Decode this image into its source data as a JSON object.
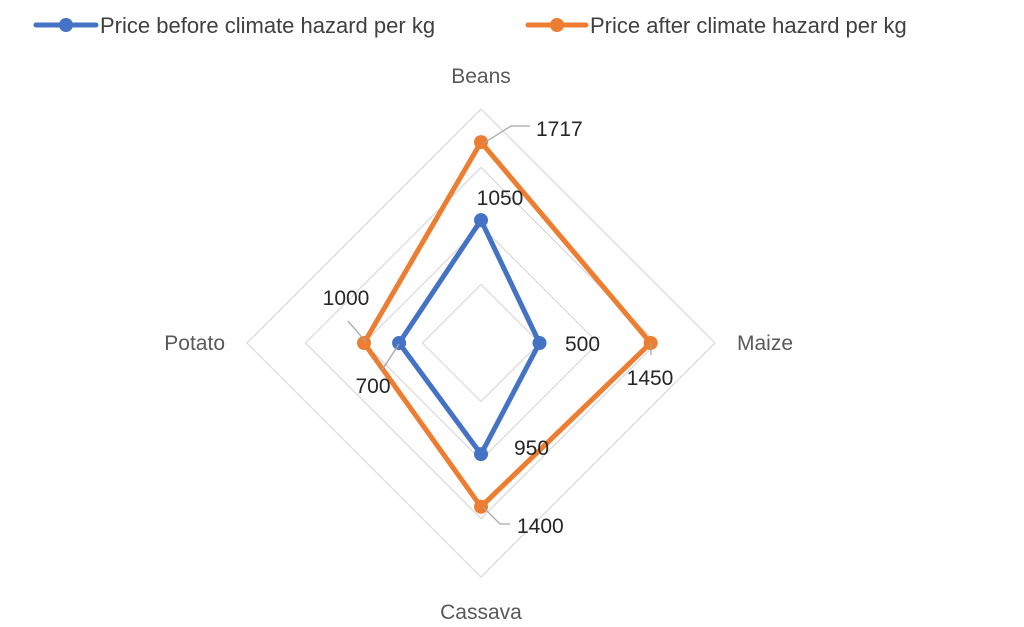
{
  "chart_data": {
    "type": "radar",
    "categories": [
      "Beans",
      "Maize",
      "Cassava",
      "Potato"
    ],
    "series": [
      {
        "name": "Price before climate hazard per kg",
        "values": [
          1050,
          500,
          950,
          700
        ],
        "color": "#4472C4"
      },
      {
        "name": "Price after climate hazard per kg",
        "values": [
          1717,
          1450,
          1400,
          1000
        ],
        "color": "#ED7D31"
      }
    ],
    "data_labels": {
      "before": [
        "1050",
        "500",
        "950",
        "700"
      ],
      "after": [
        "1717",
        "1450",
        "1400",
        "1000"
      ]
    },
    "rlim": [
      0,
      2000
    ],
    "grid": true,
    "legend_position": "top"
  }
}
